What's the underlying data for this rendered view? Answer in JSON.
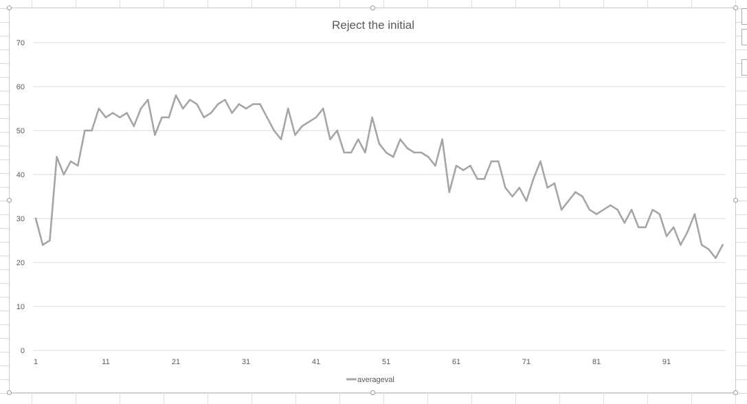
{
  "chart_data": {
    "type": "line",
    "title": "Reject the initial",
    "xlabel": "",
    "ylabel": "",
    "ylim": [
      0,
      70
    ],
    "y_ticks": [
      0,
      10,
      20,
      30,
      40,
      50,
      60,
      70
    ],
    "x_ticks": [
      1,
      11,
      21,
      31,
      41,
      51,
      61,
      71,
      81,
      91
    ],
    "x_range": [
      1,
      99
    ],
    "grid": "horizontal",
    "legend_position": "bottom",
    "series": [
      {
        "name": "averageval",
        "color": "#a5a5a5",
        "x": [
          1,
          2,
          3,
          4,
          5,
          6,
          7,
          8,
          9,
          10,
          11,
          12,
          13,
          14,
          15,
          16,
          17,
          18,
          19,
          20,
          21,
          22,
          23,
          24,
          25,
          26,
          27,
          28,
          29,
          30,
          31,
          32,
          33,
          34,
          35,
          36,
          37,
          38,
          39,
          40,
          41,
          42,
          43,
          44,
          45,
          46,
          47,
          48,
          49,
          50,
          51,
          52,
          53,
          54,
          55,
          56,
          57,
          58,
          59,
          60,
          61,
          62,
          63,
          64,
          65,
          66,
          67,
          68,
          69,
          70,
          71,
          72,
          73,
          74,
          75,
          76,
          77,
          78,
          79,
          80,
          81,
          82,
          83,
          84,
          85,
          86,
          87,
          88,
          89,
          90,
          91,
          92,
          93,
          94,
          95,
          96,
          97,
          98,
          99
        ],
        "values": [
          30,
          24,
          25,
          44,
          40,
          43,
          42,
          50,
          50,
          55,
          53,
          54,
          53,
          54,
          51,
          55,
          57,
          49,
          53,
          53,
          58,
          55,
          57,
          56,
          53,
          54,
          56,
          57,
          54,
          56,
          55,
          56,
          56,
          53,
          50,
          48,
          55,
          49,
          51,
          52,
          53,
          55,
          48,
          50,
          45,
          45,
          48,
          45,
          53,
          47,
          45,
          44,
          48,
          46,
          45,
          45,
          44,
          42,
          48,
          36,
          42,
          41,
          42,
          39,
          39,
          43,
          43,
          37,
          35,
          37,
          34,
          39,
          43,
          37,
          38,
          32,
          34,
          36,
          35,
          32,
          31,
          32,
          33,
          32,
          29,
          32,
          28,
          28,
          32,
          31,
          26,
          28,
          24,
          27,
          31,
          24,
          23,
          21,
          24
        ]
      }
    ]
  }
}
